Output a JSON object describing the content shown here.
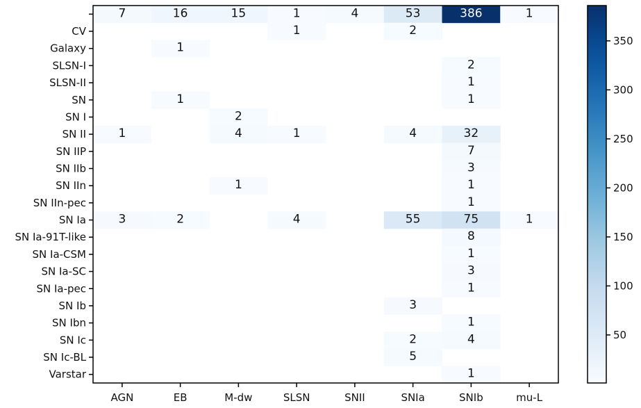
{
  "chart_data": {
    "type": "heatmap",
    "title": "",
    "xlabel": "",
    "ylabel": "",
    "x_categories": [
      "AGN",
      "EB",
      "M-dw",
      "SLSN",
      "SNII",
      "SNIa",
      "SNIb",
      "mu-L"
    ],
    "y_categories": [
      "",
      "CV",
      "Galaxy",
      "SLSN-I",
      "SLSN-II",
      "SN",
      "SN I",
      "SN II",
      "SN IIP",
      "SN IIb",
      "SN IIn",
      "SN IIn-pec",
      "SN Ia",
      "SN Ia-91T-like",
      "SN Ia-CSM",
      "SN Ia-SC",
      "SN Ia-pec",
      "SN Ib",
      "SN Ibn",
      "SN Ic",
      "SN Ic-BL",
      "Varstar"
    ],
    "values": [
      [
        7,
        16,
        15,
        1,
        4,
        53,
        386,
        1
      ],
      [
        null,
        null,
        null,
        1,
        null,
        2,
        null,
        null
      ],
      [
        null,
        1,
        null,
        null,
        null,
        null,
        null,
        null
      ],
      [
        null,
        null,
        null,
        null,
        null,
        null,
        2,
        null
      ],
      [
        null,
        null,
        null,
        null,
        null,
        null,
        1,
        null
      ],
      [
        null,
        1,
        null,
        null,
        null,
        null,
        1,
        null
      ],
      [
        null,
        null,
        2,
        null,
        null,
        null,
        null,
        null
      ],
      [
        1,
        null,
        4,
        1,
        null,
        4,
        32,
        null
      ],
      [
        null,
        null,
        null,
        null,
        null,
        null,
        7,
        null
      ],
      [
        null,
        null,
        null,
        null,
        null,
        null,
        3,
        null
      ],
      [
        null,
        null,
        1,
        null,
        null,
        null,
        1,
        null
      ],
      [
        null,
        null,
        null,
        null,
        null,
        null,
        1,
        null
      ],
      [
        3,
        2,
        null,
        4,
        null,
        55,
        75,
        1
      ],
      [
        null,
        null,
        null,
        null,
        null,
        null,
        8,
        null
      ],
      [
        null,
        null,
        null,
        null,
        null,
        null,
        1,
        null
      ],
      [
        null,
        null,
        null,
        null,
        null,
        null,
        3,
        null
      ],
      [
        null,
        null,
        null,
        null,
        null,
        null,
        1,
        null
      ],
      [
        null,
        null,
        null,
        null,
        null,
        3,
        null,
        null
      ],
      [
        null,
        null,
        null,
        null,
        null,
        null,
        1,
        null
      ],
      [
        null,
        null,
        null,
        null,
        null,
        2,
        4,
        null
      ],
      [
        null,
        null,
        null,
        null,
        null,
        5,
        null,
        null
      ],
      [
        null,
        null,
        null,
        null,
        null,
        null,
        1,
        null
      ]
    ],
    "colorscale": "Blues",
    "colorbar": {
      "min": 1,
      "max": 386,
      "ticks": [
        50,
        100,
        150,
        200,
        250,
        300,
        350
      ]
    },
    "grid": false,
    "legend": "colorbar-right"
  }
}
